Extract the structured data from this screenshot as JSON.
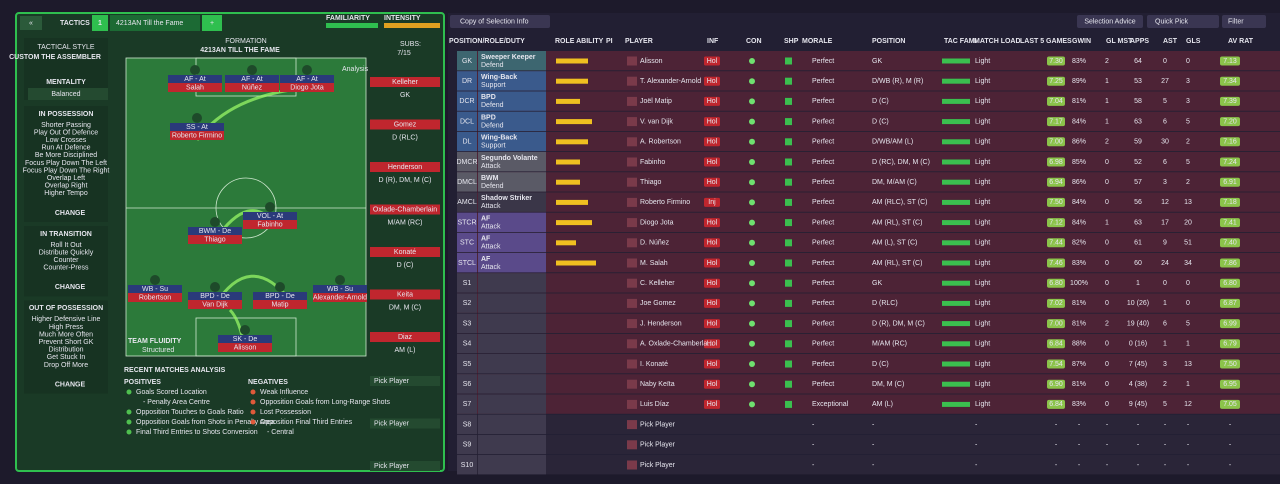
{
  "header": {
    "tab_title": "TACTICS",
    "slot": "1",
    "tactic_name": "4213AN Till the Fame",
    "add": "+",
    "familiarity": "FAMILIARITY",
    "intensity": "INTENSITY"
  },
  "sidebar": {
    "tactical_style_label": "TACTICAL STYLE",
    "style": "CUSTOM THE ASSEMBLER",
    "mentality_label": "MENTALITY",
    "mentality": "Balanced",
    "sections": [
      {
        "title": "IN POSSESSION",
        "items": [
          "Shorter Passing",
          "Play Out Of Defence",
          "Low Crosses",
          "Run At Defence",
          "Be More Disciplined",
          "Focus Play Down The Left",
          "Focus Play Down The Right",
          "Overlap Left",
          "Overlap Right",
          "Higher Tempo"
        ],
        "button": "CHANGE"
      },
      {
        "title": "IN TRANSITION",
        "items": [
          "Roll It Out",
          "Distribute Quickly",
          "Counter",
          "Counter-Press"
        ],
        "button": "CHANGE"
      },
      {
        "title": "OUT OF POSSESSION",
        "items": [
          "Higher Defensive Line",
          "High Press",
          "Much More Often",
          "Prevent Short GK",
          "Distribution",
          "Get Stuck In",
          "Drop Off More"
        ],
        "button": "CHANGE"
      }
    ]
  },
  "formation": {
    "label": "FORMATION",
    "name": "4213AN TILL THE FAME",
    "subs_label": "SUBS:",
    "subs": "7/15",
    "analysis": "Analysis",
    "fluidity_label": "TEAM FLUIDITY",
    "fluidity": "Structured",
    "players": [
      {
        "role": "AF - At",
        "name": "Salah"
      },
      {
        "role": "AF - At",
        "name": "Núñez"
      },
      {
        "role": "AF - At",
        "name": "Diogo Jota"
      },
      {
        "role": "SS - At",
        "name": "Roberto Firmino"
      },
      {
        "role": "BWM - De",
        "name": "Thiago"
      },
      {
        "role": "VOL - At",
        "name": "Fabinho"
      },
      {
        "role": "WB - Su",
        "name": "Robertson"
      },
      {
        "role": "BPD - De",
        "name": "Van Dijk"
      },
      {
        "role": "BPD - De",
        "name": "Matip"
      },
      {
        "role": "WB - Su",
        "name": "Alexander-Arnold"
      },
      {
        "role": "SK - De",
        "name": "Alisson"
      }
    ],
    "bench": [
      {
        "name": "Kelleher",
        "position": "GK"
      },
      {
        "name": "Gomez",
        "position": "D (RLC)"
      },
      {
        "name": "Henderson",
        "position": "D (R), DM, M (C)"
      },
      {
        "name": "Oxlade-Chamberlain",
        "position": "M/AM (RC)"
      },
      {
        "name": "Konaté",
        "position": "D (C)"
      },
      {
        "name": "Keita",
        "position": "DM, M (C)"
      },
      {
        "name": "Diaz",
        "position": "AM (L)"
      }
    ],
    "pick": [
      "Pick Player",
      "Pick Player",
      "Pick Player"
    ]
  },
  "analysis": {
    "title": "RECENT MATCHES ANALYSIS",
    "positives_title": "POSITIVES",
    "negatives_title": "NEGATIVES",
    "positives": [
      {
        "text": "Goals Scored Location",
        "sub": "- Penalty Area Centre"
      },
      {
        "text": "Opposition Touches to Goals Ratio"
      },
      {
        "text": "Opposition Goals from Shots in Penalty Area"
      },
      {
        "text": "Final Third Entries to Shots Conversion"
      }
    ],
    "negatives": [
      {
        "text": "Weak Influence"
      },
      {
        "text": "Opposition Goals from Long-Range Shots"
      },
      {
        "text": "Lost Possession"
      },
      {
        "text": "Opposition Final Third Entries",
        "sub": "- Central"
      }
    ]
  },
  "toolbar": {
    "view": "Copy of Selection Info",
    "advice": "Selection Advice",
    "quick_pick": "Quick Pick",
    "filter": "Filter"
  },
  "table": {
    "columns": [
      "POSITION/ROLE/DUTY",
      "ROLE ABILITY",
      "PI",
      "PLAYER",
      "INF",
      "CON",
      "SHP",
      "MORALE",
      "POSITION",
      "TAC FAMI",
      "MATCH LOAD",
      "LAST 5 GAMES",
      "GWIN",
      "GL MST",
      "APPS",
      "AST",
      "GLS",
      "AV RAT"
    ],
    "rows": [
      {
        "pos": "GK",
        "role": "Sweeper Keeper",
        "duty": "Defend",
        "role_ability": 4,
        "player": "Alisson",
        "inf": "Hol",
        "morale": "Perfect",
        "position": "GK",
        "match_load": "Light",
        "rating": "7.30",
        "gwin": "83%",
        "gl_mst": "2",
        "apps": "64",
        "ast": "0",
        "gls": "0",
        "av_rat": "7.13"
      },
      {
        "pos": "DR",
        "role": "Wing-Back",
        "duty": "Support",
        "role_ability": 4,
        "player": "T. Alexander-Arnold",
        "inf": "Hol",
        "morale": "Perfect",
        "position": "D/WB (R), M (R)",
        "match_load": "Light",
        "rating": "7.25",
        "gwin": "89%",
        "gl_mst": "1",
        "apps": "53",
        "ast": "27",
        "gls": "3",
        "av_rat": "7.34"
      },
      {
        "pos": "DCR",
        "role": "BPD",
        "duty": "Defend",
        "role_ability": 3,
        "player": "Joël Matip",
        "inf": "Hol",
        "morale": "Perfect",
        "position": "D (C)",
        "match_load": "Light",
        "rating": "7.04",
        "gwin": "81%",
        "gl_mst": "1",
        "apps": "58",
        "ast": "5",
        "gls": "3",
        "av_rat": "7.39"
      },
      {
        "pos": "DCL",
        "role": "BPD",
        "duty": "Defend",
        "role_ability": 4.5,
        "player": "V. van Dijk",
        "inf": "Hol",
        "morale": "Perfect",
        "position": "D (C)",
        "match_load": "Light",
        "rating": "7.17",
        "gwin": "84%",
        "gl_mst": "1",
        "apps": "63",
        "ast": "6",
        "gls": "5",
        "av_rat": "7.20"
      },
      {
        "pos": "DL",
        "role": "Wing-Back",
        "duty": "Support",
        "role_ability": 4,
        "player": "A. Robertson",
        "inf": "Hol",
        "morale": "Perfect",
        "position": "D/WB/AM (L)",
        "match_load": "Light",
        "rating": "7.00",
        "gwin": "86%",
        "gl_mst": "2",
        "apps": "59",
        "ast": "30",
        "gls": "2",
        "av_rat": "7.16"
      },
      {
        "pos": "DMCR",
        "role": "Segundo Volante",
        "duty": "Attack",
        "role_ability": 3,
        "player": "Fabinho",
        "inf": "Hol",
        "morale": "Perfect",
        "position": "D (RC), DM, M (C)",
        "match_load": "Light",
        "rating": "6.98",
        "gwin": "85%",
        "gl_mst": "0",
        "apps": "52",
        "ast": "6",
        "gls": "5",
        "av_rat": "7.24"
      },
      {
        "pos": "DMCL",
        "role": "BWM",
        "duty": "Defend",
        "role_ability": 3,
        "player": "Thiago",
        "inf": "Hol",
        "morale": "Perfect",
        "position": "DM, M/AM (C)",
        "match_load": "Light",
        "rating": "6.94",
        "gwin": "86%",
        "gl_mst": "0",
        "apps": "57",
        "ast": "3",
        "gls": "2",
        "av_rat": "6.91"
      },
      {
        "pos": "AMCL",
        "role": "Shadow Striker",
        "duty": "Attack",
        "role_ability": 4,
        "player": "Roberto Firmino",
        "inf": "Inj",
        "morale": "Perfect",
        "position": "AM (RLC), ST (C)",
        "match_load": "Light",
        "rating": "7.50",
        "gwin": "84%",
        "gl_mst": "0",
        "apps": "56",
        "ast": "12",
        "gls": "13",
        "av_rat": "7.18"
      },
      {
        "pos": "STCR",
        "role": "AF",
        "duty": "Attack",
        "role_ability": 4.5,
        "player": "Diogo Jota",
        "inf": "Hol",
        "morale": "Perfect",
        "position": "AM (RL), ST (C)",
        "match_load": "Light",
        "rating": "7.12",
        "gwin": "84%",
        "gl_mst": "1",
        "apps": "63",
        "ast": "17",
        "gls": "20",
        "av_rat": "7.41"
      },
      {
        "pos": "STC",
        "role": "AF",
        "duty": "Attack",
        "role_ability": 2.5,
        "player": "D. Núñez",
        "inf": "Hol",
        "morale": "Perfect",
        "position": "AM (L), ST (C)",
        "match_load": "Light",
        "rating": "7.44",
        "gwin": "82%",
        "gl_mst": "0",
        "apps": "61",
        "ast": "9",
        "gls": "51",
        "av_rat": "7.40"
      },
      {
        "pos": "STCL",
        "role": "AF",
        "duty": "Attack",
        "role_ability": 5,
        "player": "M. Salah",
        "inf": "Hol",
        "morale": "Perfect",
        "position": "AM (RL), ST (C)",
        "match_load": "Light",
        "rating": "7.46",
        "gwin": "83%",
        "gl_mst": "0",
        "apps": "60",
        "ast": "24",
        "gls": "34",
        "av_rat": "7.86"
      },
      {
        "pos": "S1",
        "player": "C. Kelleher",
        "inf": "Hol",
        "morale": "Perfect",
        "position": "GK",
        "match_load": "Light",
        "rating": "6.80",
        "gwin": "100%",
        "gl_mst": "0",
        "apps": "1",
        "ast": "0",
        "gls": "0",
        "av_rat": "6.80"
      },
      {
        "pos": "S2",
        "player": "Joe Gomez",
        "inf": "Hol",
        "morale": "Perfect",
        "position": "D (RLC)",
        "match_load": "Light",
        "rating": "7.02",
        "gwin": "81%",
        "gl_mst": "0",
        "apps": "10 (26)",
        "ast": "1",
        "gls": "0",
        "av_rat": "6.87"
      },
      {
        "pos": "S3",
        "player": "J. Henderson",
        "inf": "Hol",
        "morale": "Perfect",
        "position": "D (R), DM, M (C)",
        "match_load": "Light",
        "rating": "7.00",
        "gwin": "81%",
        "gl_mst": "2",
        "apps": "19 (40)",
        "ast": "6",
        "gls": "5",
        "av_rat": "6.99"
      },
      {
        "pos": "S4",
        "player": "A. Oxlade-Chamberla...",
        "inf": "Hol",
        "morale": "Perfect",
        "position": "M/AM (RC)",
        "match_load": "Light",
        "rating": "6.84",
        "gwin": "88%",
        "gl_mst": "0",
        "apps": "0 (16)",
        "ast": "1",
        "gls": "1",
        "av_rat": "6.79"
      },
      {
        "pos": "S5",
        "player": "I. Konaté",
        "inf": "Hol",
        "morale": "Perfect",
        "position": "D (C)",
        "match_load": "Light",
        "rating": "7.54",
        "gwin": "87%",
        "gl_mst": "0",
        "apps": "7 (45)",
        "ast": "3",
        "gls": "13",
        "av_rat": "7.50"
      },
      {
        "pos": "S6",
        "player": "Naby Keïta",
        "inf": "Hol",
        "morale": "Perfect",
        "position": "DM, M (C)",
        "match_load": "Light",
        "rating": "6.90",
        "gwin": "81%",
        "gl_mst": "0",
        "apps": "4 (38)",
        "ast": "2",
        "gls": "1",
        "av_rat": "6.95"
      },
      {
        "pos": "S7",
        "player": "Luis Díaz",
        "inf": "Hol",
        "morale": "Exceptional",
        "position": "AM (L)",
        "match_load": "Light",
        "rating": "6.84",
        "gwin": "83%",
        "gl_mst": "0",
        "apps": "9 (45)",
        "ast": "5",
        "gls": "12",
        "av_rat": "7.05"
      },
      {
        "pos": "S8",
        "player": "Pick Player",
        "morale": "-",
        "position": "-",
        "match_load": "-",
        "rating": "-",
        "gwin": "-",
        "gl_mst": "-",
        "apps": "-",
        "ast": "-",
        "gls": "-",
        "av_rat": "-"
      },
      {
        "pos": "S9",
        "player": "Pick Player",
        "morale": "-",
        "position": "-",
        "match_load": "-",
        "rating": "-",
        "gwin": "-",
        "gl_mst": "-",
        "apps": "-",
        "ast": "-",
        "gls": "-",
        "av_rat": "-"
      },
      {
        "pos": "S10",
        "player": "Pick Player",
        "morale": "-",
        "position": "-",
        "match_load": "-",
        "rating": "-",
        "gwin": "-",
        "gl_mst": "-",
        "apps": "-",
        "ast": "-",
        "gls": "-",
        "av_rat": "-"
      }
    ]
  }
}
